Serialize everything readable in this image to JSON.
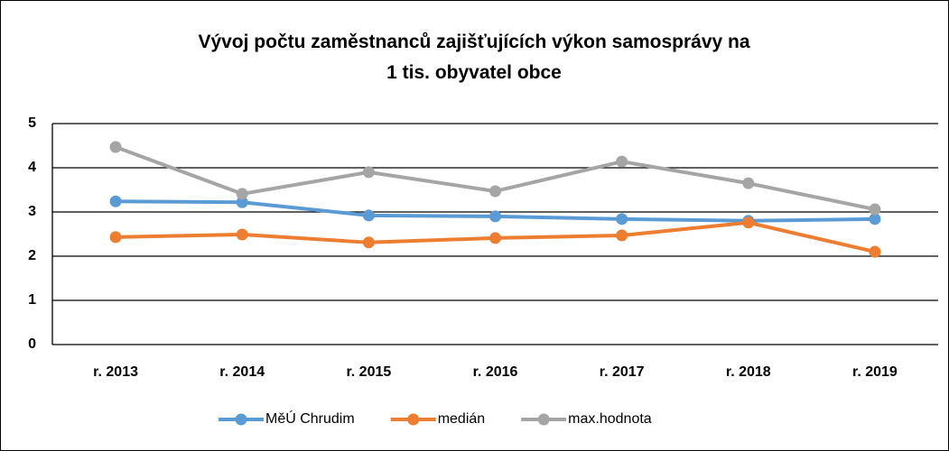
{
  "chart_data": {
    "type": "line",
    "title": "Vývoj počtu zaměstnanců zajišťujících výkon samosprávy na 1 tis. obyvatel obce",
    "categories": [
      "r. 2013",
      "r. 2014",
      "r. 2015",
      "r. 2016",
      "r. 2017",
      "r. 2018",
      "r. 2019"
    ],
    "series": [
      {
        "name": "MěÚ Chrudim",
        "color": "#5b9bd5",
        "values": [
          3.24,
          3.22,
          2.92,
          2.9,
          2.84,
          2.8,
          2.84
        ]
      },
      {
        "name": "medián",
        "color": "#ed7d31",
        "values": [
          2.43,
          2.49,
          2.31,
          2.41,
          2.47,
          2.76,
          2.1
        ]
      },
      {
        "name": "max.hodnota",
        "color": "#a5a5a5",
        "values": [
          4.47,
          3.41,
          3.9,
          3.47,
          4.14,
          3.65,
          3.06
        ]
      }
    ],
    "ylim": [
      0,
      5
    ],
    "yticks": [
      0,
      1,
      2,
      3,
      4,
      5
    ],
    "grid": true,
    "legend": "bottom"
  }
}
